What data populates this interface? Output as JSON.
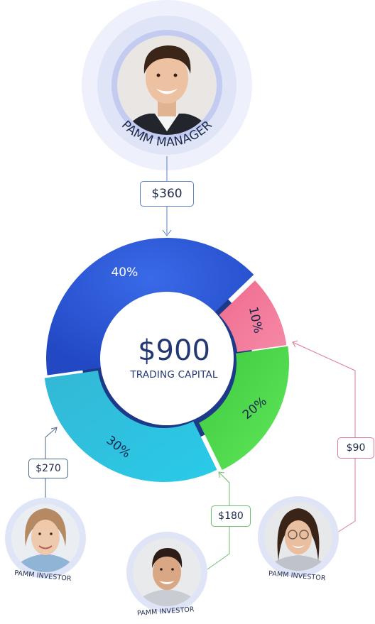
{
  "manager": {
    "label": "PAMM MANAGER",
    "avatar": "manager-avatar"
  },
  "chart_data": {
    "type": "pie",
    "title": "",
    "center_value": "$900",
    "center_label": "TRADING CAPITAL",
    "slices": [
      {
        "label": "40%",
        "value": 40,
        "color": "#2c59d9",
        "amount": "$360",
        "owner": "PAMM MANAGER"
      },
      {
        "label": "10%",
        "value": 10,
        "color": "#f2698d",
        "amount": "$90",
        "owner": "PAMM INVESTOR"
      },
      {
        "label": "20%",
        "value": 20,
        "color": "#4fdc4e",
        "amount": "$180",
        "owner": "PAMM INVESTOR"
      },
      {
        "label": "30%",
        "value": 30,
        "color": "#2fc4df",
        "amount": "$270",
        "owner": "PAMM INVESTOR"
      }
    ]
  },
  "flows": {
    "manager_amount": "$360",
    "investor_left_amount": "$270",
    "investor_middle_amount": "$180",
    "investor_right_amount": "$90"
  },
  "investors": [
    {
      "label": "PAMM INVESTOR",
      "avatar": "investor-avatar-woman"
    },
    {
      "label": "PAMM INVESTOR",
      "avatar": "investor-avatar-man"
    },
    {
      "label": "PAMM INVESTOR",
      "avatar": "investor-avatar-woman-glasses"
    }
  ],
  "colors": {
    "manager_flow": "#5c7fc7",
    "investor_left_flow": "#4a6a8a",
    "investor_middle_flow": "#6cbf6c",
    "investor_right_flow": "#e07a94",
    "ring_halo": "#dfe4f7",
    "ring_inner": "#c3cbf0",
    "text_dark": "#243775"
  }
}
